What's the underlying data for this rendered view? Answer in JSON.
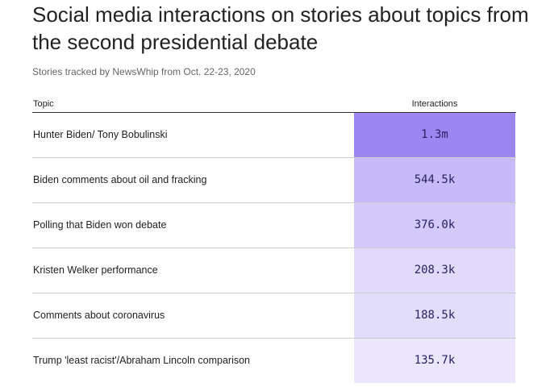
{
  "header": {
    "title": "Social media interactions on stories about topics from the second presidential debate",
    "subtitle": "Stories tracked by NewsWhip from Oct. 22-23, 2020"
  },
  "table": {
    "topic_header": "Topic",
    "value_header": "Interactions"
  },
  "colors": {
    "max_fill": "#9b86f2",
    "min_fill": "#ebe6fd",
    "value_text": "#2a2060"
  },
  "chart_data": {
    "type": "table",
    "title": "Social media interactions on stories about topics from the second presidential debate",
    "subtitle": "Stories tracked by NewsWhip from Oct. 22-23, 2020",
    "columns": [
      "Topic",
      "Interactions"
    ],
    "rows": [
      {
        "topic": "Hunter Biden/ Tony Bobulinski",
        "label": "1.3m",
        "value": 1300000
      },
      {
        "topic": "Biden comments about oil and fracking",
        "label": "544.5k",
        "value": 544500
      },
      {
        "topic": "Polling that Biden won debate",
        "label": "376.0k",
        "value": 376000
      },
      {
        "topic": "Kristen Welker performance",
        "label": "208.3k",
        "value": 208300
      },
      {
        "topic": "Comments about coronavirus",
        "label": "188.5k",
        "value": 188500
      },
      {
        "topic": "Trump 'least racist'/Abraham Lincoln comparison",
        "label": "135.7k",
        "value": 135700
      }
    ]
  }
}
